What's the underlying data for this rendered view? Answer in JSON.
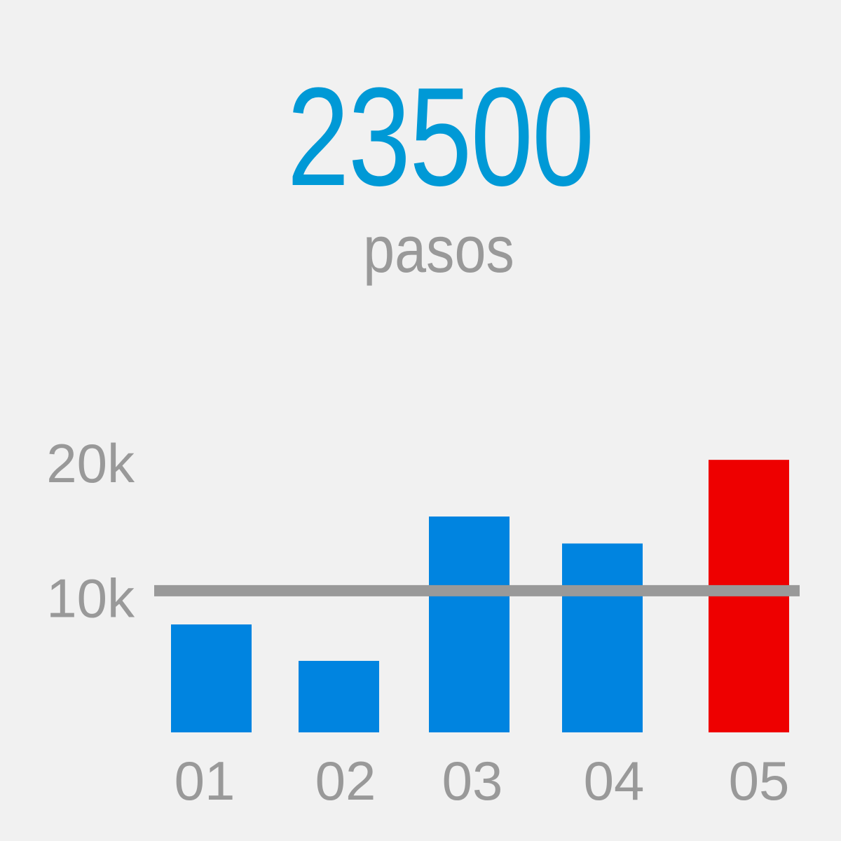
{
  "summary": {
    "value": "23500",
    "unit": "pasos"
  },
  "colors": {
    "background": "#f1f1f1",
    "accent": "#0099d6",
    "bar": "#0084e0",
    "bar_highlight": "#ee0000",
    "muted": "#999999",
    "goal_line": "#999999"
  },
  "chart_data": {
    "type": "bar",
    "categories": [
      "01",
      "02",
      "03",
      "04",
      "05"
    ],
    "values": [
      8000,
      5300,
      16000,
      14000,
      20200
    ],
    "highlight_index": 4,
    "goal": 10500,
    "ylim": [
      0,
      20000
    ],
    "yticks": [
      {
        "value": 10000,
        "label": "10k"
      },
      {
        "value": 20000,
        "label": "20k"
      }
    ],
    "title": "",
    "xlabel": "",
    "ylabel": "",
    "grid": false,
    "legend": "none"
  }
}
